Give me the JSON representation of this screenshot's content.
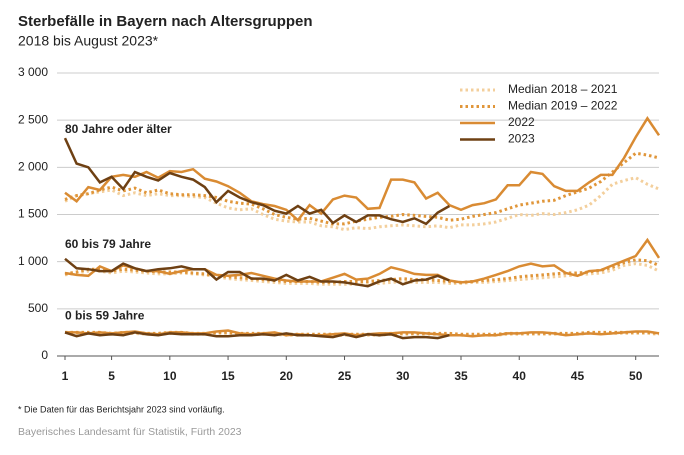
{
  "chart_data": {
    "type": "line",
    "title": "Sterbefälle in Bayern nach Altersgruppen",
    "subtitle": "2018 bis August 2023*",
    "footnote": "*   Die Daten für das Berichtsjahr 2023 sind vorläufig.",
    "source": "Bayerisches Landesamt für Statistik, Fürth 2023",
    "groups": [
      "80 Jahre oder älter",
      "60 bis 79 Jahre",
      "0 bis 59 Jahre"
    ],
    "x": [
      1,
      2,
      3,
      4,
      5,
      6,
      7,
      8,
      9,
      10,
      11,
      12,
      13,
      14,
      15,
      16,
      17,
      18,
      19,
      20,
      21,
      22,
      23,
      24,
      25,
      26,
      27,
      28,
      29,
      30,
      31,
      32,
      33,
      34,
      35,
      36,
      37,
      38,
      39,
      40,
      41,
      42,
      43,
      44,
      45,
      46,
      47,
      48,
      49,
      50,
      51,
      52
    ],
    "xlim": [
      1,
      52
    ],
    "xticks": [
      1,
      5,
      10,
      15,
      20,
      25,
      30,
      35,
      40,
      45,
      50
    ],
    "ylim": [
      0,
      3000
    ],
    "yticks": [
      0,
      {
        "value": 500,
        "label": "500"
      },
      {
        "value": 1000,
        "label": "1 000"
      },
      {
        "value": 1500,
        "label": "1 500"
      },
      {
        "value": 2000,
        "label": "2 000"
      },
      {
        "value": 2500,
        "label": "2 500"
      },
      {
        "value": 3000,
        "label": "3 000"
      }
    ],
    "grid": true,
    "series": [
      {
        "name": "Median 2018 – 2021",
        "color": "#f3cf9c",
        "dashed": true,
        "values": [
          [
            1640,
            1700,
            1720,
            1740,
            1760,
            1700,
            1730,
            1700,
            1720,
            1700,
            1700,
            1690,
            1680,
            1620,
            1570,
            1550,
            1560,
            1500,
            1450,
            1430,
            1420,
            1420,
            1380,
            1370,
            1340,
            1360,
            1350,
            1370,
            1380,
            1390,
            1380,
            1370,
            1380,
            1360,
            1390,
            1390,
            1400,
            1420,
            1460,
            1500,
            1490,
            1510,
            1500,
            1520,
            1550,
            1600,
            1700,
            1820,
            1860,
            1890,
            1820,
            1770
          ],
          [
            860,
            880,
            900,
            900,
            880,
            900,
            890,
            880,
            870,
            870,
            880,
            870,
            860,
            840,
            820,
            810,
            800,
            790,
            780,
            770,
            770,
            770,
            760,
            760,
            760,
            760,
            760,
            770,
            780,
            790,
            780,
            780,
            780,
            770,
            770,
            780,
            780,
            790,
            800,
            810,
            820,
            830,
            840,
            850,
            860,
            870,
            880,
            910,
            960,
            980,
            960,
            900
          ],
          [
            250,
            240,
            240,
            240,
            230,
            240,
            240,
            230,
            230,
            240,
            240,
            230,
            230,
            240,
            240,
            230,
            230,
            230,
            230,
            220,
            220,
            220,
            220,
            220,
            220,
            220,
            220,
            220,
            230,
            230,
            230,
            230,
            230,
            230,
            220,
            220,
            220,
            220,
            230,
            230,
            230,
            230,
            230,
            230,
            230,
            240,
            240,
            240,
            240,
            240,
            240,
            230
          ]
        ]
      },
      {
        "name": "Median 2019 – 2022",
        "color": "#e0963a",
        "dashed": true,
        "values": [
          [
            1660,
            1700,
            1720,
            1760,
            1790,
            1750,
            1780,
            1730,
            1760,
            1720,
            1710,
            1710,
            1700,
            1680,
            1640,
            1620,
            1610,
            1560,
            1500,
            1470,
            1450,
            1460,
            1430,
            1400,
            1400,
            1430,
            1450,
            1470,
            1480,
            1500,
            1490,
            1480,
            1470,
            1440,
            1450,
            1480,
            1500,
            1520,
            1560,
            1600,
            1620,
            1640,
            1650,
            1700,
            1740,
            1780,
            1850,
            1950,
            2050,
            2150,
            2130,
            2100
          ],
          [
            870,
            890,
            920,
            920,
            900,
            920,
            910,
            900,
            890,
            890,
            890,
            880,
            870,
            850,
            840,
            830,
            820,
            810,
            800,
            790,
            790,
            790,
            780,
            780,
            790,
            790,
            790,
            800,
            810,
            820,
            810,
            810,
            800,
            790,
            780,
            790,
            800,
            810,
            820,
            840,
            850,
            860,
            870,
            880,
            880,
            890,
            910,
            940,
            990,
            1020,
            1010,
            960
          ],
          [
            250,
            250,
            250,
            250,
            240,
            250,
            250,
            240,
            240,
            250,
            250,
            240,
            240,
            250,
            250,
            240,
            240,
            240,
            240,
            230,
            230,
            230,
            230,
            230,
            230,
            230,
            230,
            230,
            240,
            240,
            240,
            240,
            240,
            240,
            230,
            230,
            230,
            230,
            240,
            240,
            240,
            240,
            240,
            240,
            240,
            250,
            250,
            250,
            250,
            250,
            250,
            240
          ]
        ]
      },
      {
        "name": "2022",
        "color": "#d98b33",
        "dashed": false,
        "values": [
          [
            1730,
            1640,
            1790,
            1760,
            1900,
            1920,
            1900,
            1950,
            1890,
            1960,
            1950,
            1980,
            1880,
            1850,
            1800,
            1730,
            1640,
            1610,
            1590,
            1550,
            1440,
            1600,
            1510,
            1660,
            1700,
            1680,
            1560,
            1570,
            1870,
            1870,
            1840,
            1670,
            1730,
            1600,
            1550,
            1600,
            1620,
            1660,
            1810,
            1810,
            1950,
            1930,
            1800,
            1750,
            1750,
            1840,
            1920,
            1920,
            2100,
            2320,
            2520,
            2340
          ],
          [
            880,
            860,
            850,
            950,
            900,
            960,
            930,
            900,
            900,
            870,
            900,
            920,
            920,
            860,
            850,
            860,
            880,
            850,
            820,
            800,
            790,
            790,
            790,
            830,
            870,
            810,
            820,
            870,
            940,
            910,
            870,
            860,
            860,
            800,
            780,
            790,
            820,
            860,
            900,
            950,
            980,
            950,
            960,
            880,
            850,
            900,
            910,
            960,
            1010,
            1060,
            1230,
            1040
          ],
          [
            250,
            250,
            240,
            250,
            240,
            250,
            260,
            240,
            230,
            250,
            250,
            240,
            240,
            260,
            270,
            240,
            230,
            240,
            250,
            220,
            230,
            220,
            220,
            230,
            240,
            220,
            230,
            240,
            240,
            250,
            250,
            240,
            230,
            220,
            220,
            210,
            220,
            220,
            240,
            240,
            250,
            250,
            240,
            220,
            230,
            240,
            230,
            240,
            250,
            260,
            260,
            240
          ]
        ]
      },
      {
        "name": "2023",
        "color": "#6e4013",
        "dashed": false,
        "values": [
          [
            2310,
            2040,
            2000,
            1840,
            1900,
            1770,
            1950,
            1900,
            1860,
            1940,
            1900,
            1870,
            1790,
            1630,
            1750,
            1680,
            1630,
            1600,
            1540,
            1510,
            1590,
            1510,
            1550,
            1410,
            1490,
            1420,
            1490,
            1490,
            1450,
            1420,
            1460,
            1400,
            1520,
            1590,
            null,
            null,
            null,
            null,
            null,
            null,
            null,
            null,
            null,
            null,
            null,
            null,
            null,
            null,
            null,
            null,
            null,
            null
          ],
          [
            1030,
            930,
            920,
            900,
            900,
            980,
            930,
            900,
            920,
            930,
            950,
            920,
            920,
            810,
            890,
            890,
            820,
            820,
            800,
            860,
            800,
            840,
            790,
            790,
            780,
            760,
            740,
            790,
            820,
            760,
            800,
            810,
            850,
            800,
            null,
            null,
            null,
            null,
            null,
            null,
            null,
            null,
            null,
            null,
            null,
            null,
            null,
            null,
            null,
            null,
            null,
            null
          ],
          [
            250,
            210,
            240,
            220,
            230,
            220,
            250,
            230,
            220,
            240,
            230,
            230,
            230,
            210,
            210,
            220,
            220,
            230,
            220,
            240,
            220,
            220,
            210,
            200,
            230,
            200,
            230,
            220,
            230,
            190,
            200,
            200,
            190,
            220,
            null,
            null,
            null,
            null,
            null,
            null,
            null,
            null,
            null,
            null,
            null,
            null,
            null,
            null,
            null,
            null,
            null,
            null
          ]
        ]
      }
    ]
  }
}
